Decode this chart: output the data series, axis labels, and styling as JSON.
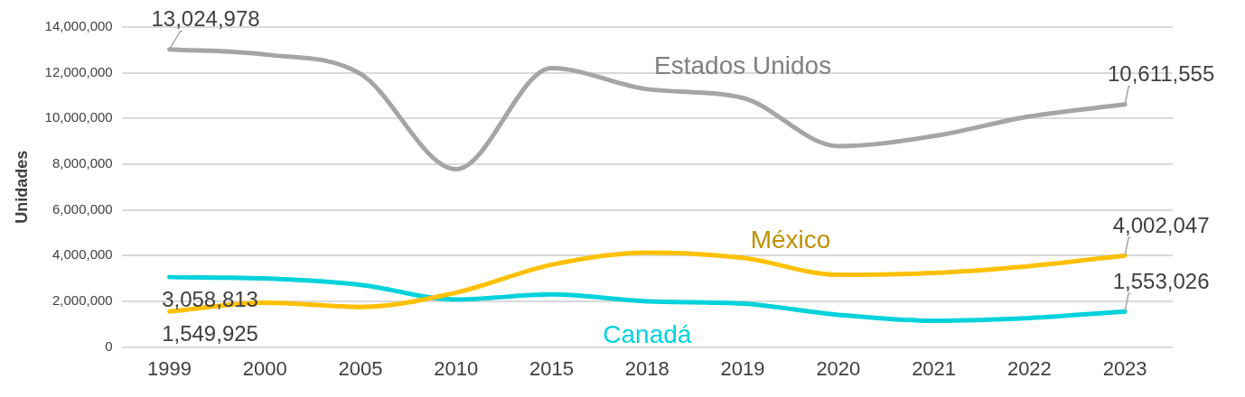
{
  "chart_data": {
    "type": "line",
    "ylabel": "Unidades",
    "categories": [
      "1999",
      "2000",
      "2005",
      "2010",
      "2015",
      "2018",
      "2019",
      "2020",
      "2021",
      "2022",
      "2023"
    ],
    "series": [
      {
        "name": "Estados Unidos",
        "color": "#a5a5a5",
        "values": [
          13024978,
          12800000,
          11950000,
          7780000,
          12200000,
          11280000,
          10900000,
          8790000,
          9230000,
          10090000,
          10611555
        ],
        "value_labels": [
          "13,024,978",
          null,
          null,
          null,
          null,
          null,
          null,
          null,
          null,
          null,
          "10,611,555"
        ]
      },
      {
        "name": "México",
        "color": "#ffc000",
        "values": [
          1549925,
          1940000,
          1750000,
          2380000,
          3600000,
          4130000,
          3900000,
          3160000,
          3240000,
          3540000,
          4002047
        ],
        "value_labels": [
          "1,549,925",
          null,
          null,
          null,
          null,
          null,
          null,
          null,
          null,
          null,
          "4,002,047"
        ]
      },
      {
        "name": "Canadá",
        "color": "#00d2dc",
        "values": [
          3058813,
          3000000,
          2720000,
          2080000,
          2300000,
          2000000,
          1900000,
          1410000,
          1150000,
          1270000,
          1553026
        ],
        "value_labels": [
          "3,058,813",
          null,
          null,
          null,
          null,
          null,
          null,
          null,
          null,
          null,
          "1,553,026"
        ]
      }
    ],
    "ylim": [
      0,
      14000000
    ],
    "yticks": [
      0,
      {
        "value": 2000000,
        "label": "2,000,000"
      },
      {
        "value": 4000000,
        "label": "4,000,000"
      },
      {
        "value": 6000000,
        "label": "6,000,000"
      },
      {
        "value": 8000000,
        "label": "8,000,000"
      },
      {
        "value": 10000000,
        "label": "10,000,000"
      },
      {
        "value": 12000000,
        "label": "12,000,000"
      },
      {
        "value": 14000000,
        "label": "14,000,000"
      }
    ],
    "grid": "y",
    "legend": false,
    "marker": "none",
    "line_style": "solid"
  }
}
